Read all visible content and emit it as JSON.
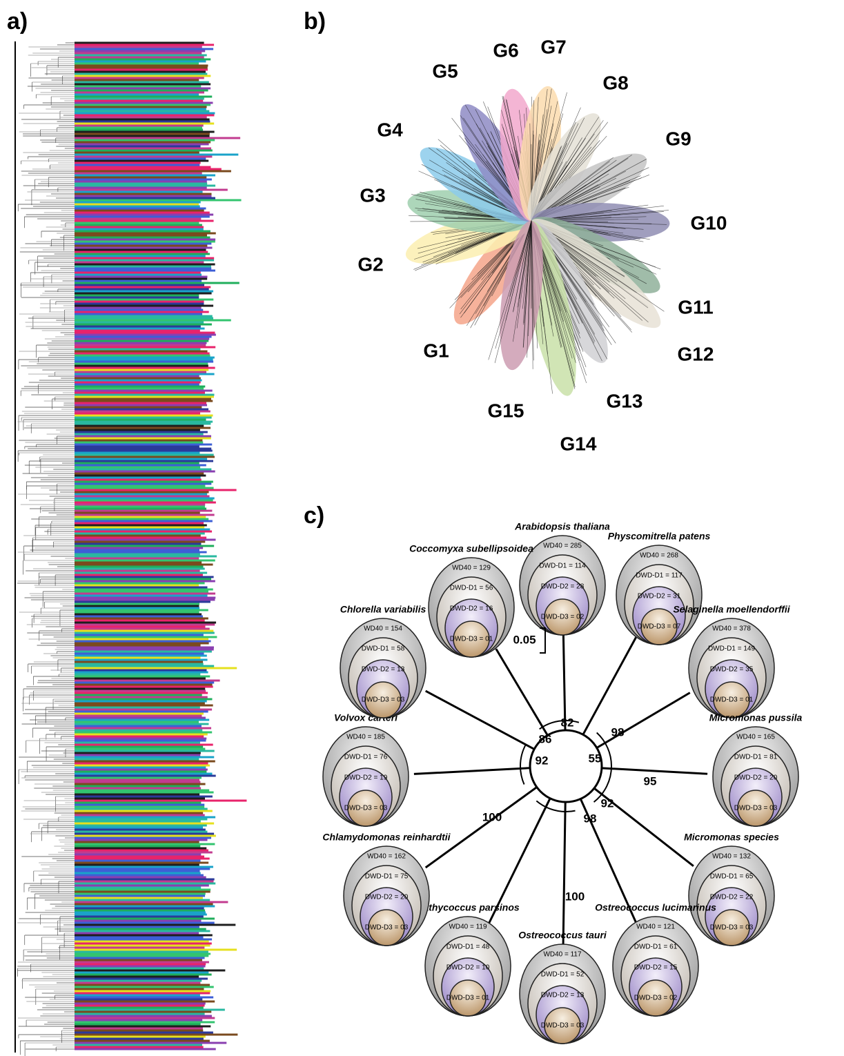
{
  "panels": {
    "a": "a)",
    "b": "b)",
    "c": "c)"
  },
  "groups": [
    {
      "label": "G1",
      "color": "#f4a58a"
    },
    {
      "label": "G2",
      "color": "#fbeeb0"
    },
    {
      "label": "G3",
      "color": "#9fcfae"
    },
    {
      "label": "G4",
      "color": "#8ccbeb"
    },
    {
      "label": "G5",
      "color": "#8e8bc4"
    },
    {
      "label": "G6",
      "color": "#f2a8cc"
    },
    {
      "label": "G7",
      "color": "#fbdcae"
    },
    {
      "label": "G8",
      "color": "#e4e0d6"
    },
    {
      "label": "G9",
      "color": "#c4c4c4"
    },
    {
      "label": "G10",
      "color": "#8f8db3"
    },
    {
      "label": "G11",
      "color": "#8fb09a"
    },
    {
      "label": "G12",
      "color": "#e8e2d6"
    },
    {
      "label": "G13",
      "color": "#d0d0d4"
    },
    {
      "label": "G14",
      "color": "#c9e0a8"
    },
    {
      "label": "G15",
      "color": "#cc9cb2"
    }
  ],
  "tree": {
    "species": [
      {
        "name": "Arabidopsis thaliana",
        "wd40": "WD40 = 285",
        "d1": "DWD-D1 = 114",
        "d2": "DWD-D2 = 28",
        "d3": "DWD-D3 = 02"
      },
      {
        "name": "Physcomitrella patens",
        "wd40": "WD40 = 268",
        "d1": "DWD-D1 = 117",
        "d2": "DWD-D2 = 31",
        "d3": "DWD-D3 = 07"
      },
      {
        "name": "Selaginella moellendorffii",
        "wd40": "WD40 = 378",
        "d1": "DWD-D1 = 149",
        "d2": "DWD-D2 = 35",
        "d3": "DWD-D3 = 01"
      },
      {
        "name": "Micromonas pussila",
        "wd40": "WD40 = 165",
        "d1": "DWD-D1 = 81",
        "d2": "DWD-D2 = 20",
        "d3": "DWD-D3 = 03"
      },
      {
        "name": "Micromonas species",
        "wd40": "WD40 = 132",
        "d1": "DWD-D1 = 65",
        "d2": "DWD-D2 = 22",
        "d3": "DWD-D3 = 03"
      },
      {
        "name": "Ostreococcus lucimarinus",
        "wd40": "WD40 = 121",
        "d1": "DWD-D1 = 61",
        "d2": "DWD-D2 = 15",
        "d3": "DWD-D3 = 02"
      },
      {
        "name": "Ostreococcus tauri",
        "wd40": "WD40 = 117",
        "d1": "DWD-D1 = 52",
        "d2": "DWD-D2 = 13",
        "d3": "DWD-D3 = 03"
      },
      {
        "name": "Bathycoccus parsinos",
        "wd40": "WD40 = 119",
        "d1": "DWD-D1 = 48",
        "d2": "DWD-D2 = 10",
        "d3": "DWD-D3 = 01"
      },
      {
        "name": "Chlamydomonas reinhardtii",
        "wd40": "WD40 = 162",
        "d1": "DWD-D1 = 75",
        "d2": "DWD-D2 = 20",
        "d3": "DWD-D3 = 03"
      },
      {
        "name": "Volvox carteri",
        "wd40": "WD40 = 185",
        "d1": "DWD-D1 = 76",
        "d2": "DWD-D2 = 19",
        "d3": "DWD-D3 = 03"
      },
      {
        "name": "Chlorella variabilis",
        "wd40": "WD40 = 154",
        "d1": "DWD-D1 = 58",
        "d2": "DWD-D2 = 13",
        "d3": "DWD-D3 = 03"
      },
      {
        "name": "Coccomyxa subellipsoidea",
        "wd40": "WD40 = 129",
        "d1": "DWD-D1 = 56",
        "d2": "DWD-D2 = 16",
        "d3": "DWD-D3 = 01"
      }
    ],
    "support": [
      "86",
      "92",
      "82",
      "55",
      "98",
      "95",
      "92",
      "98",
      "100",
      "100"
    ],
    "scale": "0.05"
  }
}
